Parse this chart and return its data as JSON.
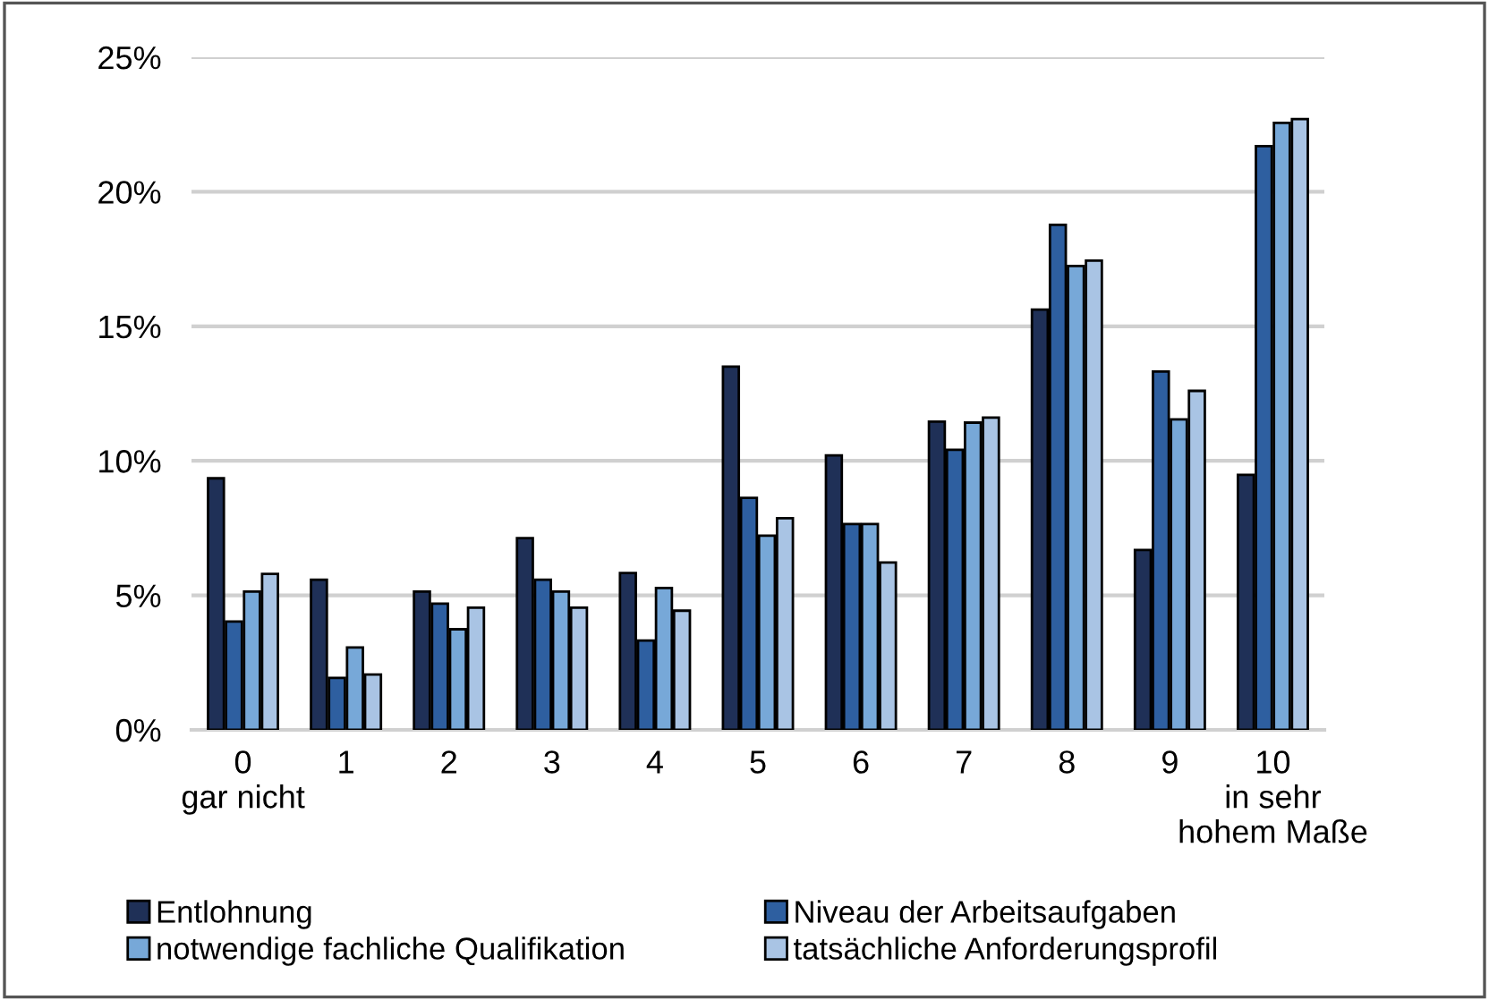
{
  "chart_data": {
    "type": "bar",
    "categories": [
      "0\ngar nicht",
      "1",
      "2",
      "3",
      "4",
      "5",
      "6",
      "7",
      "8",
      "9",
      "10\nin sehr\nhohem Maße"
    ],
    "series": [
      {
        "name": "Entlohnung",
        "color": "#1f3057",
        "values": [
          9.35,
          5.58,
          5.14,
          7.13,
          5.83,
          13.5,
          10.2,
          11.46,
          15.62,
          6.69,
          9.48
        ]
      },
      {
        "name": "Niveau der Arbeitsaufgaben",
        "color": "#2e5fa0",
        "values": [
          4.03,
          1.93,
          4.69,
          5.58,
          3.32,
          8.62,
          7.65,
          10.41,
          18.77,
          13.32,
          21.7
        ]
      },
      {
        "name": "notwendige fachliche Qualifikation",
        "color": "#77a8d8",
        "values": [
          5.14,
          3.06,
          3.74,
          5.14,
          5.27,
          7.22,
          7.65,
          11.42,
          17.24,
          11.54,
          22.56
        ]
      },
      {
        "name": "tatsächliche Anforderungsprofil",
        "color": "#a9c4e4",
        "values": [
          5.8,
          2.06,
          4.54,
          4.54,
          4.43,
          7.87,
          6.22,
          11.61,
          17.44,
          12.6,
          22.7
        ]
      }
    ],
    "ylim": [
      0,
      25
    ],
    "yticks": [
      {
        "value": 0,
        "label": "0%"
      },
      {
        "value": 5,
        "label": "5%"
      },
      {
        "value": 10,
        "label": "10%"
      },
      {
        "value": 15,
        "label": "15%"
      },
      {
        "value": 20,
        "label": "20%"
      },
      {
        "value": 25,
        "label": "25%"
      }
    ],
    "grid": "y",
    "legend": "bottom"
  }
}
